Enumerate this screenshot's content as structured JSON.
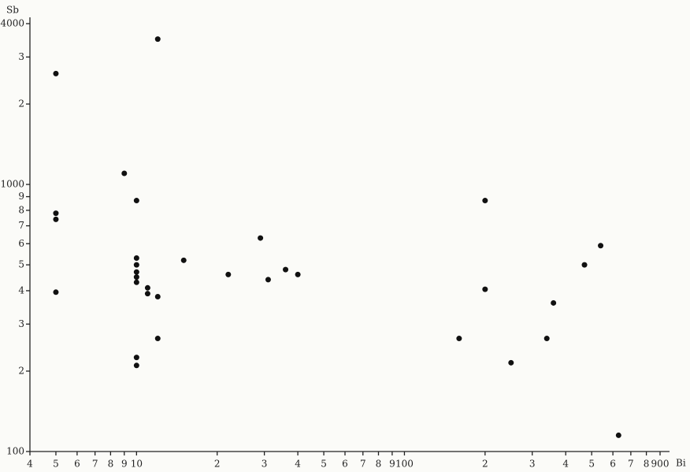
{
  "chart_data": {
    "type": "scatter",
    "xlabel": "Bi",
    "ylabel": "Sb",
    "xlog": true,
    "ylog": true,
    "color": "#111111",
    "xlim": [
      4,
      900
    ],
    "ylim": [
      100,
      4000
    ],
    "xticks": [
      4,
      5,
      6,
      7,
      8,
      9,
      10,
      {
        "value": 20,
        "label": "2"
      },
      {
        "value": 30,
        "label": "3"
      },
      {
        "value": 40,
        "label": "4"
      },
      {
        "value": 50,
        "label": "5"
      },
      {
        "value": 60,
        "label": "6"
      },
      {
        "value": 70,
        "label": "7"
      },
      {
        "value": 80,
        "label": "8"
      },
      {
        "value": 90,
        "label": "9"
      },
      100,
      {
        "value": 200,
        "label": "2"
      },
      {
        "value": 300,
        "label": "3"
      },
      {
        "value": 400,
        "label": "4"
      },
      {
        "value": 500,
        "label": "5"
      },
      {
        "value": 600,
        "label": "6"
      },
      {
        "value": 700,
        "label": "7"
      },
      {
        "value": 800,
        "label": "8"
      },
      900
    ],
    "yticks": [
      100,
      {
        "value": 200,
        "label": "2"
      },
      {
        "value": 300,
        "label": "3"
      },
      {
        "value": 400,
        "label": "4"
      },
      {
        "value": 500,
        "label": "5"
      },
      {
        "value": 600,
        "label": "6"
      },
      {
        "value": 700,
        "label": "7"
      },
      {
        "value": 800,
        "label": "8"
      },
      {
        "value": 900,
        "label": "9"
      },
      1000,
      {
        "value": 2000,
        "label": "2"
      },
      {
        "value": 3000,
        "label": "3"
      },
      4000
    ],
    "x": [
      5,
      5,
      5,
      5,
      9,
      10,
      10,
      10,
      10,
      10,
      10,
      10,
      10,
      11,
      11,
      12,
      12,
      12,
      15,
      22,
      29,
      31,
      36,
      40,
      160,
      200,
      200,
      250,
      340,
      360,
      470,
      540,
      630
    ],
    "y": [
      2600,
      780,
      740,
      395,
      1100,
      870,
      530,
      500,
      470,
      450,
      430,
      225,
      210,
      410,
      390,
      3500,
      380,
      265,
      520,
      460,
      630,
      440,
      480,
      460,
      265,
      870,
      405,
      215,
      265,
      360,
      500,
      590,
      115
    ]
  }
}
